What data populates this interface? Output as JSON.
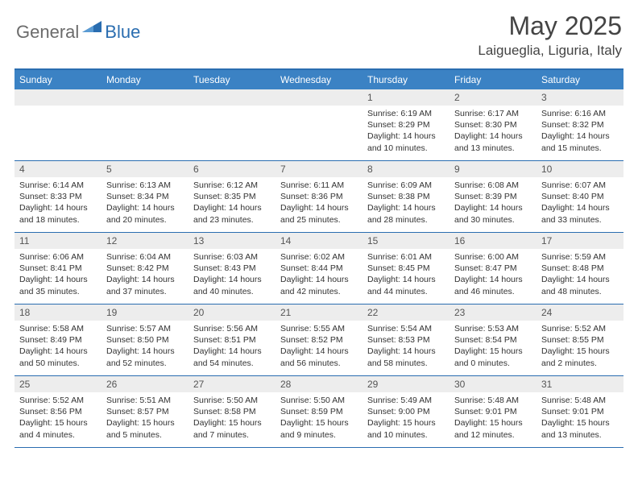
{
  "brand": {
    "part1": "General",
    "part2": "Blue"
  },
  "title": "May 2025",
  "location": "Laigueglia, Liguria, Italy",
  "colors": {
    "header_bg": "#3b82c4",
    "border": "#2a6db0",
    "daynum_bg": "#ededed",
    "text": "#333333",
    "logo_gray": "#6b6b6b",
    "logo_blue": "#2a6db0"
  },
  "dow": [
    "Sunday",
    "Monday",
    "Tuesday",
    "Wednesday",
    "Thursday",
    "Friday",
    "Saturday"
  ],
  "weeks": [
    [
      null,
      null,
      null,
      null,
      {
        "n": "1",
        "sr": "6:19 AM",
        "ss": "8:29 PM",
        "dl": "14 hours and 10 minutes."
      },
      {
        "n": "2",
        "sr": "6:17 AM",
        "ss": "8:30 PM",
        "dl": "14 hours and 13 minutes."
      },
      {
        "n": "3",
        "sr": "6:16 AM",
        "ss": "8:32 PM",
        "dl": "14 hours and 15 minutes."
      }
    ],
    [
      {
        "n": "4",
        "sr": "6:14 AM",
        "ss": "8:33 PM",
        "dl": "14 hours and 18 minutes."
      },
      {
        "n": "5",
        "sr": "6:13 AM",
        "ss": "8:34 PM",
        "dl": "14 hours and 20 minutes."
      },
      {
        "n": "6",
        "sr": "6:12 AM",
        "ss": "8:35 PM",
        "dl": "14 hours and 23 minutes."
      },
      {
        "n": "7",
        "sr": "6:11 AM",
        "ss": "8:36 PM",
        "dl": "14 hours and 25 minutes."
      },
      {
        "n": "8",
        "sr": "6:09 AM",
        "ss": "8:38 PM",
        "dl": "14 hours and 28 minutes."
      },
      {
        "n": "9",
        "sr": "6:08 AM",
        "ss": "8:39 PM",
        "dl": "14 hours and 30 minutes."
      },
      {
        "n": "10",
        "sr": "6:07 AM",
        "ss": "8:40 PM",
        "dl": "14 hours and 33 minutes."
      }
    ],
    [
      {
        "n": "11",
        "sr": "6:06 AM",
        "ss": "8:41 PM",
        "dl": "14 hours and 35 minutes."
      },
      {
        "n": "12",
        "sr": "6:04 AM",
        "ss": "8:42 PM",
        "dl": "14 hours and 37 minutes."
      },
      {
        "n": "13",
        "sr": "6:03 AM",
        "ss": "8:43 PM",
        "dl": "14 hours and 40 minutes."
      },
      {
        "n": "14",
        "sr": "6:02 AM",
        "ss": "8:44 PM",
        "dl": "14 hours and 42 minutes."
      },
      {
        "n": "15",
        "sr": "6:01 AM",
        "ss": "8:45 PM",
        "dl": "14 hours and 44 minutes."
      },
      {
        "n": "16",
        "sr": "6:00 AM",
        "ss": "8:47 PM",
        "dl": "14 hours and 46 minutes."
      },
      {
        "n": "17",
        "sr": "5:59 AM",
        "ss": "8:48 PM",
        "dl": "14 hours and 48 minutes."
      }
    ],
    [
      {
        "n": "18",
        "sr": "5:58 AM",
        "ss": "8:49 PM",
        "dl": "14 hours and 50 minutes."
      },
      {
        "n": "19",
        "sr": "5:57 AM",
        "ss": "8:50 PM",
        "dl": "14 hours and 52 minutes."
      },
      {
        "n": "20",
        "sr": "5:56 AM",
        "ss": "8:51 PM",
        "dl": "14 hours and 54 minutes."
      },
      {
        "n": "21",
        "sr": "5:55 AM",
        "ss": "8:52 PM",
        "dl": "14 hours and 56 minutes."
      },
      {
        "n": "22",
        "sr": "5:54 AM",
        "ss": "8:53 PM",
        "dl": "14 hours and 58 minutes."
      },
      {
        "n": "23",
        "sr": "5:53 AM",
        "ss": "8:54 PM",
        "dl": "15 hours and 0 minutes."
      },
      {
        "n": "24",
        "sr": "5:52 AM",
        "ss": "8:55 PM",
        "dl": "15 hours and 2 minutes."
      }
    ],
    [
      {
        "n": "25",
        "sr": "5:52 AM",
        "ss": "8:56 PM",
        "dl": "15 hours and 4 minutes."
      },
      {
        "n": "26",
        "sr": "5:51 AM",
        "ss": "8:57 PM",
        "dl": "15 hours and 5 minutes."
      },
      {
        "n": "27",
        "sr": "5:50 AM",
        "ss": "8:58 PM",
        "dl": "15 hours and 7 minutes."
      },
      {
        "n": "28",
        "sr": "5:50 AM",
        "ss": "8:59 PM",
        "dl": "15 hours and 9 minutes."
      },
      {
        "n": "29",
        "sr": "5:49 AM",
        "ss": "9:00 PM",
        "dl": "15 hours and 10 minutes."
      },
      {
        "n": "30",
        "sr": "5:48 AM",
        "ss": "9:01 PM",
        "dl": "15 hours and 12 minutes."
      },
      {
        "n": "31",
        "sr": "5:48 AM",
        "ss": "9:01 PM",
        "dl": "15 hours and 13 minutes."
      }
    ]
  ],
  "labels": {
    "sunrise": "Sunrise:",
    "sunset": "Sunset:",
    "daylight": "Daylight:"
  }
}
